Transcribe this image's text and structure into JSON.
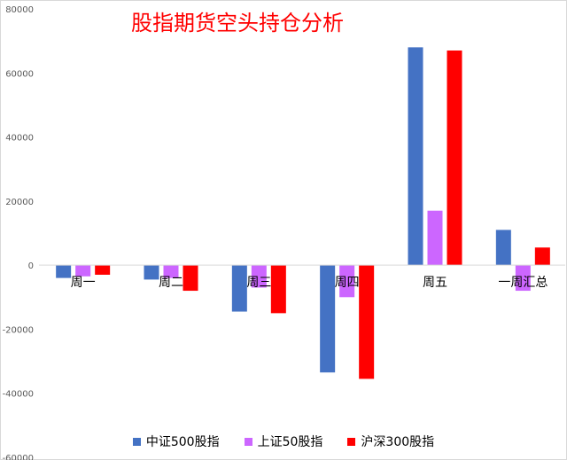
{
  "chart_data": {
    "type": "bar",
    "title": "股指期货空头持仓分析",
    "categories": [
      "周一",
      "周二",
      "周三",
      "周四",
      "周五",
      "一周汇总"
    ],
    "series": [
      {
        "name": "中证500股指",
        "color": "#4472c4",
        "values": [
          -4000,
          -4500,
          -14500,
          -33500,
          68000,
          11000
        ]
      },
      {
        "name": "上证50股指",
        "color": "#cc66ff",
        "values": [
          -3500,
          -4000,
          -7000,
          -10000,
          17000,
          -8000
        ]
      },
      {
        "name": "沪深300股指",
        "color": "#ff0000",
        "values": [
          -3000,
          -8000,
          -15000,
          -35500,
          67000,
          5500
        ]
      }
    ],
    "ylim": [
      -60000,
      80000
    ],
    "yticks": [
      80000,
      60000,
      40000,
      20000,
      0,
      -20000,
      -40000,
      -60000
    ],
    "grid": false,
    "legend_position": "bottom"
  }
}
